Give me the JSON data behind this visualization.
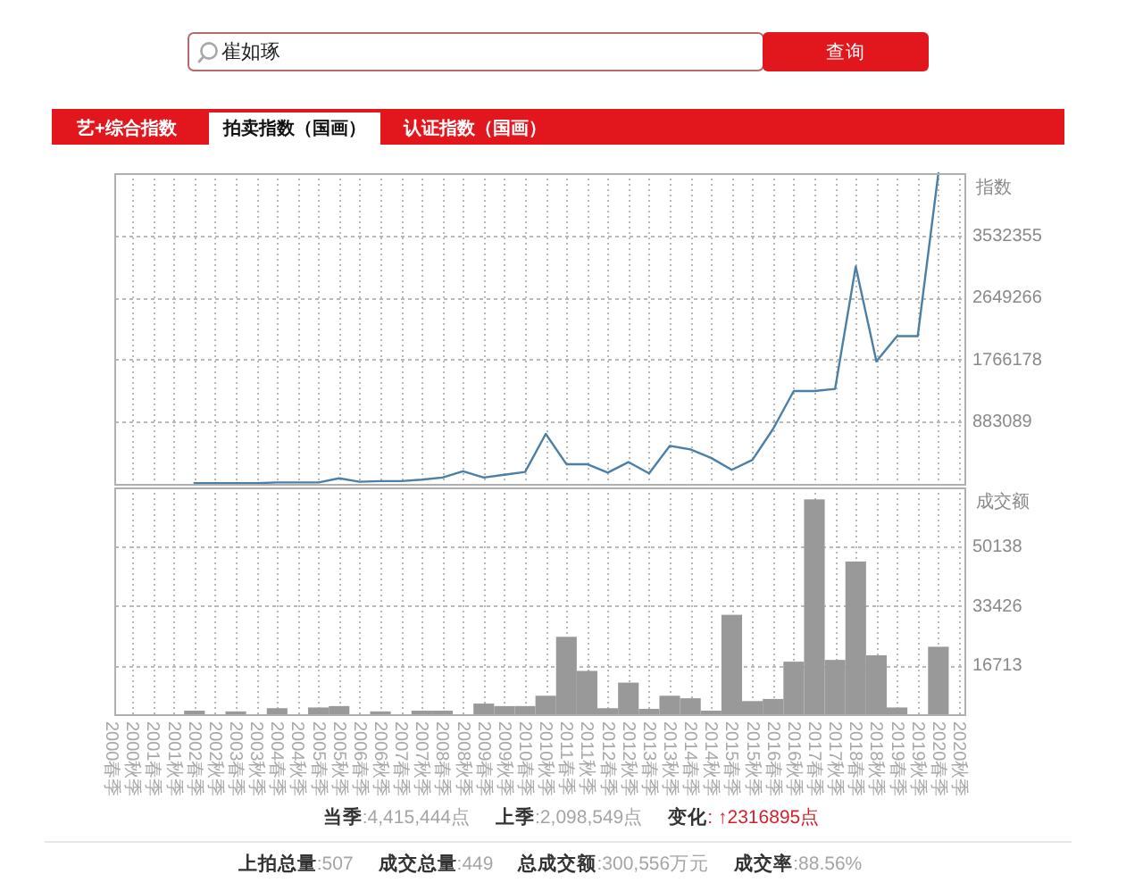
{
  "chart_data": [
    {
      "type": "other",
      "annotations": [
        "崔如琢",
        "查询",
        "艺+综合指数",
        "拍卖指数（国画）",
        "认证指数（国画）"
      ]
    },
    {
      "type": "line",
      "categories": [
        null,
        null,
        null,
        null,
        null,
        null,
        null,
        null,
        null,
        null,
        null,
        null,
        null,
        null,
        null,
        null,
        null,
        null,
        null,
        null,
        null,
        null,
        null,
        null,
        null,
        null,
        null,
        null,
        null,
        null,
        null,
        null,
        null,
        null,
        null,
        null,
        null,
        null,
        null,
        null,
        null,
        null
      ],
      "values": [
        null,
        null,
        null,
        null,
        10000,
        10000,
        10000,
        10000,
        20000,
        20000,
        20000,
        80000,
        30000,
        40000,
        40000,
        60000,
        90000,
        180000,
        90000,
        130000,
        170000,
        710000,
        280000,
        280000,
        160000,
        310000,
        150000,
        540000,
        490000,
        370000,
        200000,
        340000,
        780000,
        1320000,
        1320000,
        1350000,
        3090000,
        1740000,
        2100000,
        2100000,
        4415444,
        null
      ],
      "color": "#4b7fa6",
      "ylim": [
        0,
        4415444
      ],
      "yticks": [
        883089,
        1766178,
        2649266,
        3532355
      ],
      "ylabel": "指数",
      "grid": true,
      "tick_labels": "y"
    },
    {
      "type": "bar",
      "categories": [
        "2000春季",
        "2000秋季",
        "2001春季",
        "2001秋季",
        "2002春季",
        "2002秋季",
        "2003春季",
        "2003秋季",
        "2004春季",
        "2004秋季",
        "2005春季",
        "2005秋季",
        "2006春季",
        "2006秋季",
        "2007春季",
        "2007秋季",
        "2008春季",
        "2008秋季",
        "2009春季",
        "2009秋季",
        "2010春季",
        "2010秋季",
        "2011春季",
        "2011秋季",
        "2012春季",
        "2012秋季",
        "2013春季",
        "2013秋季",
        "2014春季",
        "2014秋季",
        "2015春季",
        "2015秋季",
        "2016春季",
        "2016秋季",
        "2017春季",
        "2017秋季",
        "2018春季",
        "2018秋季",
        "2019春季",
        "2019秋季",
        "2020春季",
        "2020秋季"
      ],
      "values": [
        null,
        null,
        null,
        null,
        4000,
        null,
        3800,
        null,
        4700,
        null,
        4900,
        5300,
        null,
        3800,
        null,
        4000,
        4000,
        null,
        6000,
        5300,
        5300,
        8200,
        24800,
        15200,
        4700,
        11900,
        4500,
        8200,
        7500,
        4000,
        31000,
        6700,
        7300,
        17800,
        63500,
        18300,
        46000,
        19600,
        4900,
        null,
        22000,
        null
      ],
      "color": "#999999",
      "ylim": [
        3000,
        66851
      ],
      "yticks": [
        16713,
        33426,
        50138
      ],
      "ylabel": "成交额",
      "grid": true
    },
    {
      "type": "other",
      "annotations": [
        "**当季**:4,415,444点",
        "**上季**:2,098,549点",
        "**变化**: ↑2316895点",
        "**上拍总量**:507",
        "**成交总量**:449",
        "**总成交额**:300,556万元",
        "**成交率**:88.56%"
      ]
    }
  ]
}
